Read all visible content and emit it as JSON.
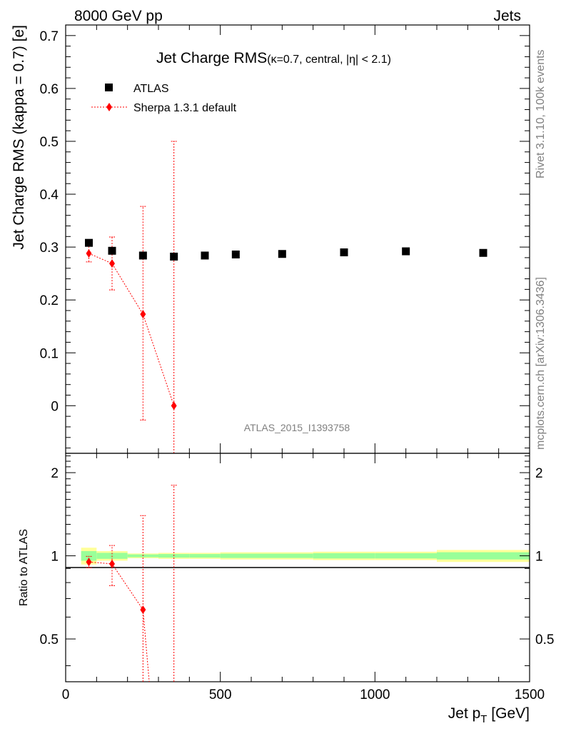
{
  "header": {
    "left": "8000 GeV pp",
    "right": "Jets"
  },
  "side": {
    "rivet": "Rivet 3.1.10,  100k events",
    "mcplots": "mcplots.cern.ch [arXiv:1306.3436]"
  },
  "chart_data": [
    {
      "type": "scatter",
      "title": "Jet Charge RMS",
      "subtitle": "(κ=0.7, central, |η| < 2.1)",
      "ylabel": "Jet Charge RMS (kappa = 0.7) [e]",
      "analysis_tag": "ATLAS_2015_I1393758",
      "xlim": [
        0,
        1500
      ],
      "ylim": [
        -0.09,
        0.72
      ],
      "y_ticks": [
        0,
        0.1,
        0.2,
        0.3,
        0.4,
        0.5,
        0.6,
        0.7
      ],
      "y_tick_labels": [
        "0",
        "0.1",
        "0.2",
        "0.3",
        "0.4",
        "0.5",
        "0.6",
        "0.7"
      ],
      "legend_position": "top-left",
      "series": [
        {
          "name": "ATLAS",
          "color": "#000000",
          "marker": "square",
          "x": [
            75,
            150,
            250,
            350,
            450,
            550,
            700,
            900,
            1100,
            1350
          ],
          "y": [
            0.308,
            0.293,
            0.284,
            0.282,
            0.284,
            0.286,
            0.287,
            0.29,
            0.292,
            0.289
          ]
        },
        {
          "name": "Sherpa 1.3.1 default",
          "color": "#ff0000",
          "marker": "diamond",
          "line": "dotted",
          "x": [
            75,
            150,
            250,
            350
          ],
          "y": [
            0.288,
            0.269,
            0.173,
            0.0
          ],
          "y_err_low": [
            0.016,
            0.05,
            0.2,
            0.09
          ],
          "y_err_high": [
            0.016,
            0.05,
            0.204,
            0.5
          ]
        }
      ]
    },
    {
      "type": "scatter",
      "ylabel": "Ratio to ATLAS",
      "xlabel": "Jet p_T [GeV]",
      "xlim": [
        0,
        1500
      ],
      "ylim": [
        0.35,
        2.35
      ],
      "log_y": true,
      "x_ticks": [
        0,
        500,
        1000,
        1500
      ],
      "x_tick_labels": [
        "0",
        "500",
        "1000",
        "1500"
      ],
      "y_ticks": [
        0.5,
        1,
        2
      ],
      "y_tick_labels": [
        "0.5",
        "1",
        "2"
      ],
      "reference_band": {
        "edges": [
          50,
          100,
          200,
          300,
          400,
          500,
          600,
          800,
          1000,
          1200,
          1500
        ],
        "yellow": [
          0.07,
          0.04,
          0.02,
          0.025,
          0.025,
          0.03,
          0.03,
          0.035,
          0.035,
          0.05
        ],
        "green": [
          0.04,
          0.025,
          0.012,
          0.015,
          0.015,
          0.018,
          0.018,
          0.022,
          0.022,
          0.03
        ]
      },
      "series": [
        {
          "name": "Sherpa 1.3.1 default",
          "color": "#ff0000",
          "x": [
            75,
            150,
            250,
            350
          ],
          "y": [
            0.95,
            0.935,
            0.638,
            0.0
          ],
          "y_err_low": [
            0.045,
            0.155,
            0.64,
            0.3
          ],
          "y_err_high": [
            0.045,
            0.155,
            0.76,
            1.8
          ]
        }
      ]
    }
  ]
}
